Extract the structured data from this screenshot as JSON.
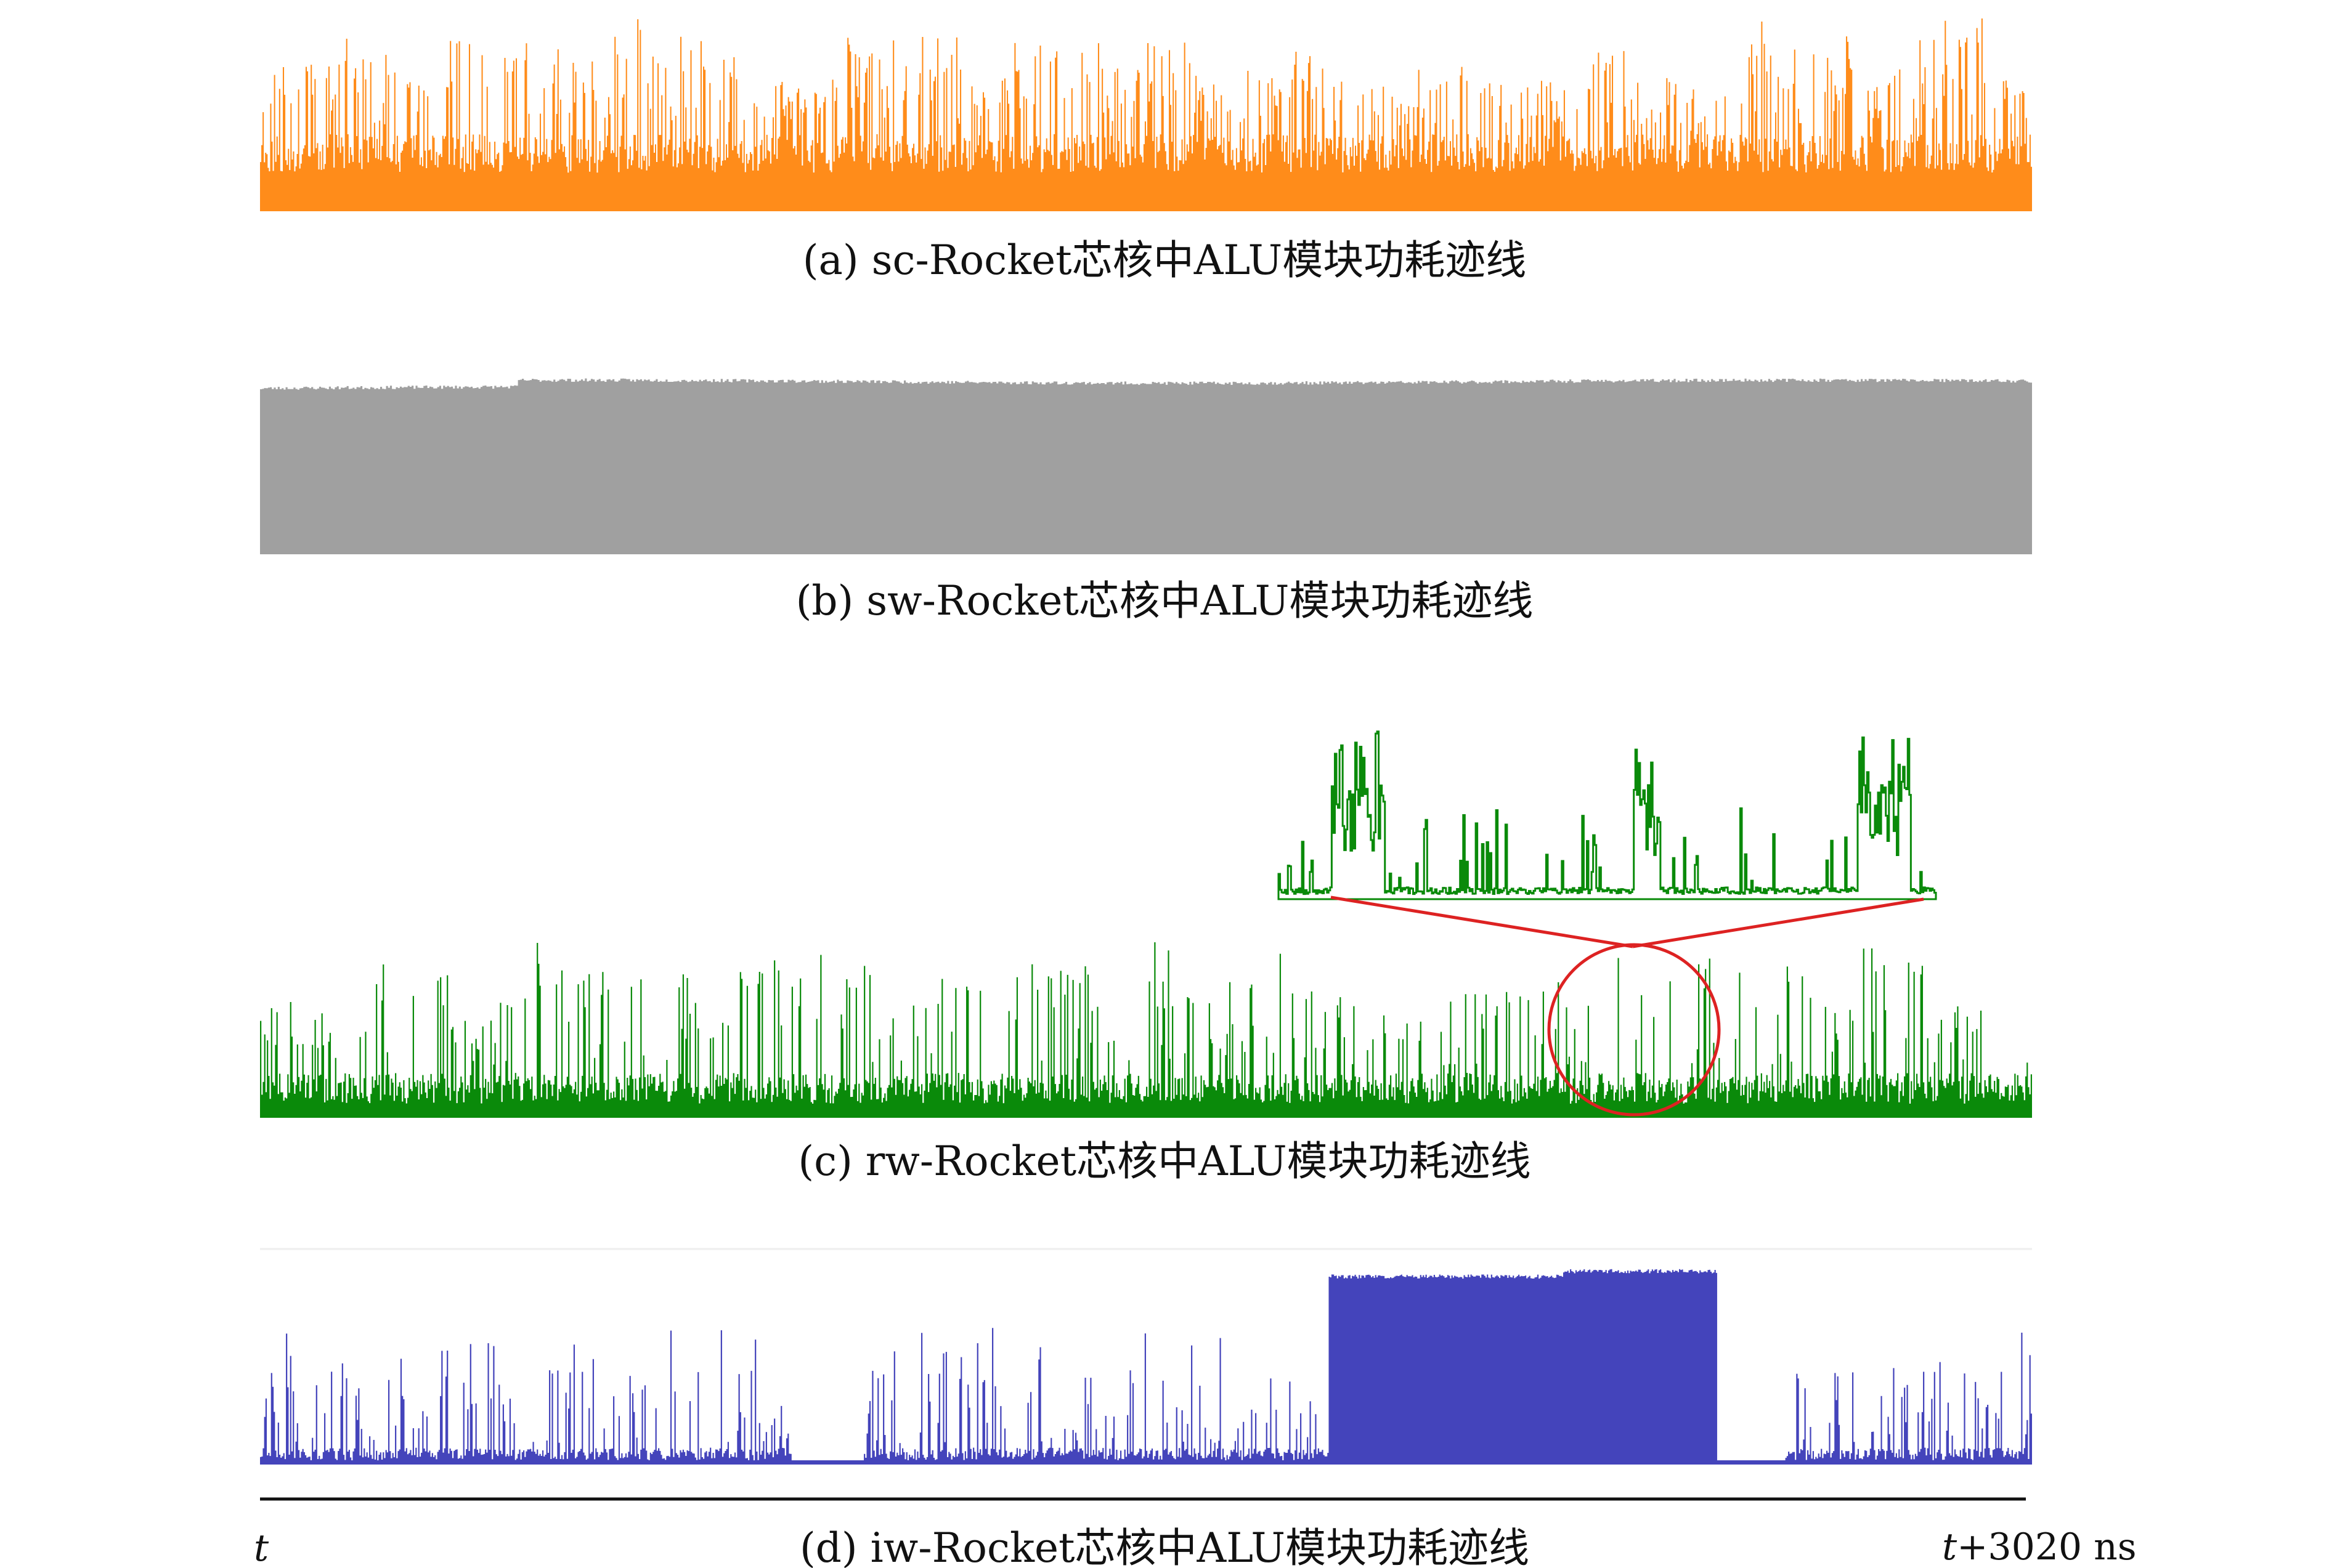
{
  "chart_data": {
    "type": "area",
    "title": "",
    "xlabel": "",
    "ylabel": "",
    "x_axis": {
      "start_label": "t",
      "end_label_italic": "t",
      "end_label_rest": "+3020 ns",
      "start_ns": 0,
      "end_ns": 3020
    },
    "grid": false,
    "legend": "none",
    "panels": [
      {
        "id": "a",
        "caption": "(a) sc-Rocket芯核中ALU模块功耗迹线",
        "color": "#ff8c1a",
        "profile": "dense-spiky",
        "baseline_level": 0.2,
        "typical_level": 0.45,
        "peak_level": 1.0,
        "ylim": [
          0,
          1
        ]
      },
      {
        "id": "b",
        "caption": "(b) sw-Rocket芯核中ALU模块功耗迹线",
        "color": "#a0a0a0",
        "profile": "flat-high",
        "baseline_level": 0.0,
        "typical_level": 0.9,
        "peak_level": 0.95,
        "ylim": [
          0,
          1
        ]
      },
      {
        "id": "c",
        "caption": "(c) rw-Rocket芯核中ALU模块功耗迹线",
        "color": "#0a8a0a",
        "profile": "random-spiky",
        "baseline_level": 0.08,
        "typical_level": 0.3,
        "peak_level": 1.0,
        "ylim": [
          0,
          1
        ],
        "zoom": {
          "circle_color": "#dd2222",
          "range_fraction": [
            0.73,
            0.82
          ]
        }
      },
      {
        "id": "d",
        "caption": "(d) iw-Rocket芯核中ALU模块功耗迹线",
        "color": "#4444bb",
        "profile": "idle-busy",
        "baseline_level": 0.02,
        "typical_level": 0.3,
        "peak_level": 0.95,
        "ylim": [
          0,
          1
        ],
        "busy_block": {
          "start_fraction": 0.603,
          "end_fraction": 0.822,
          "level": 0.88
        },
        "idle_gaps": [
          [
            0.3,
            0.34
          ],
          [
            0.82,
            0.86
          ]
        ]
      }
    ]
  }
}
